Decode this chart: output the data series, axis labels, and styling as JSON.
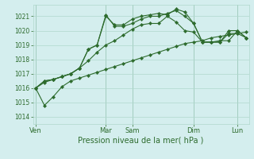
{
  "background_color": "#d4eeee",
  "grid_color": "#b0d8cc",
  "line_color": "#2d6b2d",
  "ylim": [
    1013.5,
    1021.8
  ],
  "yticks": [
    1014,
    1015,
    1016,
    1017,
    1018,
    1019,
    1020,
    1021
  ],
  "xlabel": "Pression niveau de la mer( hPa )",
  "xlabel_color": "#2d6b2d",
  "tick_color": "#2d6b2d",
  "day_labels": [
    "Ven",
    "Mar",
    "Sam",
    "Dim",
    "Lun"
  ],
  "day_positions": [
    0,
    8,
    11,
    18,
    23
  ],
  "xlim": [
    -0.3,
    24.3
  ],
  "n_points": 25,
  "series": [
    [
      1016.0,
      1014.8,
      1015.4,
      1016.1,
      1016.5,
      1016.7,
      1016.9,
      1017.1,
      1017.3,
      1017.5,
      1017.7,
      1017.9,
      1018.1,
      1018.3,
      1018.5,
      1018.7,
      1018.9,
      1019.1,
      1019.2,
      1019.3,
      1019.5,
      1019.6,
      1019.7,
      1019.8,
      1019.9
    ],
    [
      1016.0,
      1016.4,
      1016.6,
      1016.8,
      1017.0,
      1017.4,
      1017.9,
      1018.5,
      1019.0,
      1019.3,
      1019.7,
      1020.1,
      1020.4,
      1020.5,
      1020.5,
      1021.0,
      1020.6,
      1020.0,
      1019.9,
      1019.2,
      1019.2,
      1019.2,
      1020.0,
      1020.0,
      1019.5
    ],
    [
      1016.0,
      1016.5,
      1016.6,
      1016.8,
      1017.0,
      1017.4,
      1018.7,
      1019.0,
      1021.1,
      1020.3,
      1020.3,
      1020.5,
      1020.8,
      1021.0,
      1021.0,
      1021.2,
      1021.4,
      1021.0,
      1020.5,
      1019.2,
      1019.2,
      1019.3,
      1019.3,
      1020.0,
      1019.5
    ],
    [
      1016.0,
      1016.5,
      1016.6,
      1016.8,
      1017.0,
      1017.4,
      1018.7,
      1019.0,
      1021.0,
      1020.4,
      1020.4,
      1020.8,
      1021.0,
      1021.1,
      1021.2,
      1021.1,
      1021.5,
      1021.3,
      1020.5,
      1019.2,
      1019.2,
      1019.2,
      1019.8,
      1019.8,
      1019.5
    ]
  ],
  "marker": "D",
  "markersize": 2.2,
  "linewidth": 0.8
}
